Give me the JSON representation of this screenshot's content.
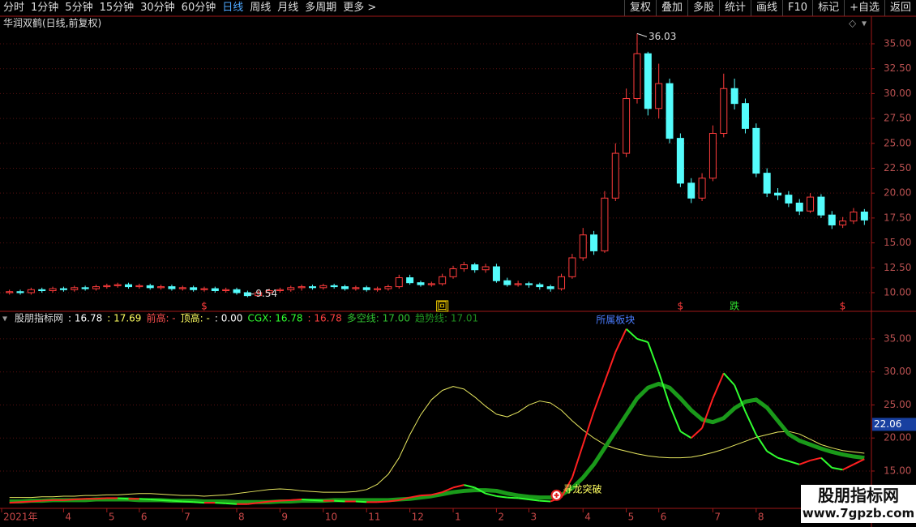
{
  "toolbar": {
    "left": [
      "分时",
      "1分钟",
      "5分钟",
      "15分钟",
      "30分钟",
      "60分钟",
      "日线",
      "周线",
      "月线",
      "多周期",
      "更多 >"
    ],
    "active": 6,
    "right": [
      "复权",
      "叠加",
      "多股",
      "统计",
      "画线",
      "F10",
      "标记",
      "+自选",
      "返回"
    ]
  },
  "chart_data": [
    {
      "type": "candlestick",
      "title": "华润双鹤(日线,前复权)",
      "open": [
        10.0,
        10.1,
        10.0,
        10.3,
        10.2,
        10.4,
        10.3,
        10.5,
        10.4,
        10.6,
        10.7,
        10.8,
        10.6,
        10.7,
        10.5,
        10.6,
        10.4,
        10.5,
        10.3,
        10.4,
        10.2,
        10.3,
        10.0,
        9.7,
        10.0,
        10.2,
        10.3,
        10.5,
        10.6,
        10.5,
        10.7,
        10.6,
        10.4,
        10.5,
        10.3,
        10.4,
        10.6,
        11.5,
        11.0,
        10.8,
        10.9,
        11.6,
        12.4,
        12.8,
        12.3,
        12.6,
        11.2,
        10.8,
        10.9,
        10.8,
        10.6,
        10.4,
        11.6,
        13.5,
        15.8,
        14.2,
        19.5,
        24.0,
        29.5,
        34.0,
        28.5,
        31.0,
        25.5,
        21.0,
        19.5,
        21.5,
        26.0,
        30.5,
        29.0,
        26.5,
        22.0,
        20.0,
        19.8,
        19.0,
        18.2,
        19.6,
        17.8,
        16.8,
        17.2,
        18.1
      ],
      "high": [
        10.3,
        10.3,
        10.5,
        10.5,
        10.6,
        10.6,
        10.7,
        10.7,
        10.8,
        10.9,
        11.0,
        11.0,
        10.9,
        10.9,
        10.8,
        10.8,
        10.7,
        10.7,
        10.6,
        10.6,
        10.5,
        10.5,
        10.2,
        10.2,
        10.4,
        10.5,
        10.7,
        10.8,
        10.8,
        10.9,
        10.9,
        10.8,
        10.7,
        10.7,
        10.6,
        10.8,
        11.8,
        11.8,
        11.2,
        11.1,
        11.9,
        12.7,
        13.1,
        13.0,
        12.9,
        12.9,
        11.5,
        11.2,
        11.1,
        11.0,
        10.8,
        11.9,
        13.9,
        16.5,
        16.2,
        20.2,
        25.0,
        30.5,
        36.03,
        34.2,
        33.0,
        31.5,
        26.0,
        21.5,
        22.0,
        26.8,
        32.0,
        31.5,
        29.5,
        27.0,
        22.5,
        20.5,
        20.2,
        19.4,
        20.0,
        19.9,
        18.2,
        17.6,
        18.5,
        18.4
      ],
      "low": [
        9.8,
        9.8,
        9.8,
        10.0,
        10.0,
        10.1,
        10.1,
        10.2,
        10.2,
        10.4,
        10.5,
        10.4,
        10.4,
        10.3,
        10.3,
        10.2,
        10.2,
        10.1,
        10.1,
        10.0,
        10.0,
        9.8,
        9.54,
        9.6,
        9.8,
        10.0,
        10.1,
        10.2,
        10.3,
        10.3,
        10.4,
        10.2,
        10.2,
        10.1,
        10.1,
        10.2,
        10.4,
        10.8,
        10.6,
        10.6,
        10.7,
        11.4,
        12.1,
        12.0,
        12.0,
        11.0,
        10.6,
        10.6,
        10.5,
        10.3,
        10.1,
        10.2,
        11.4,
        13.2,
        13.8,
        14.0,
        19.2,
        23.6,
        29.0,
        27.8,
        27.5,
        25.0,
        20.6,
        19.0,
        19.2,
        21.2,
        25.6,
        28.4,
        26.0,
        21.6,
        19.6,
        19.3,
        18.6,
        17.8,
        18.0,
        17.5,
        16.4,
        16.5,
        16.9,
        16.8
      ],
      "close": [
        10.1,
        10.0,
        10.3,
        10.2,
        10.4,
        10.3,
        10.5,
        10.4,
        10.6,
        10.7,
        10.8,
        10.6,
        10.7,
        10.5,
        10.6,
        10.4,
        10.5,
        10.3,
        10.4,
        10.2,
        10.3,
        10.0,
        9.7,
        10.0,
        10.2,
        10.3,
        10.5,
        10.6,
        10.5,
        10.7,
        10.6,
        10.4,
        10.5,
        10.3,
        10.4,
        10.6,
        11.5,
        11.0,
        10.8,
        10.9,
        11.6,
        12.4,
        12.8,
        12.3,
        12.6,
        11.2,
        10.8,
        10.9,
        10.8,
        10.6,
        10.4,
        11.6,
        13.5,
        15.8,
        14.2,
        19.5,
        24.0,
        29.5,
        34.0,
        28.5,
        31.0,
        25.5,
        21.0,
        19.5,
        21.5,
        26.0,
        30.5,
        29.0,
        26.5,
        22.0,
        20.0,
        19.8,
        19.0,
        18.2,
        19.6,
        17.8,
        16.8,
        17.2,
        18.1,
        17.3
      ],
      "colors": {
        "up": "#ff3c3c",
        "down": "#54fcfc"
      },
      "ylim": [
        8.45,
        36.14
      ],
      "yticks": [
        {
          "value": 10,
          "label": "10.00"
        },
        {
          "value": 12.5,
          "label": "12.50"
        },
        {
          "value": 15,
          "label": "15.00"
        },
        {
          "value": 17.5,
          "label": "17.50"
        },
        {
          "value": 20,
          "label": "20.00"
        },
        {
          "value": 22.5,
          "label": "22.50"
        },
        {
          "value": 25,
          "label": "25.00"
        },
        {
          "value": 27.5,
          "label": "27.50"
        },
        {
          "value": 30,
          "label": "30.00"
        },
        {
          "value": 32.5,
          "label": "32.50"
        },
        {
          "value": 35,
          "label": "35.00"
        }
      ],
      "grid": true,
      "annotations": [
        {
          "index": 58,
          "value": 36.03
        },
        {
          "index": 22,
          "value": 9.54
        }
      ],
      "signals": [
        {
          "index": 18,
          "text": "$",
          "color": "#ff3c3c"
        },
        {
          "index": 40,
          "text": "回",
          "color": "#ffd700",
          "boxed": true
        },
        {
          "index": 62,
          "text": "$",
          "color": "#ff3c3c"
        },
        {
          "index": 67,
          "text": "跌",
          "color": "#30e030"
        },
        {
          "index": 77,
          "text": "$",
          "color": "#ff3c3c"
        }
      ]
    },
    {
      "type": "line",
      "header": [
        {
          "text": "股朋指标网",
          "color": "#dddddd"
        },
        {
          "text": ": 16.78",
          "color": "#ffffff"
        },
        {
          "text": ": 17.69",
          "color": "#ffff60"
        },
        {
          "text": "前高: -",
          "color": "#ff5050"
        },
        {
          "text": "顶高: -",
          "color": "#ffff60"
        },
        {
          "text": ": 0.00",
          "color": "#ffffff"
        },
        {
          "text": "CGX: 16.78",
          "color": "#30ff30"
        },
        {
          "text": ": 16.78",
          "color": "#ff4040"
        },
        {
          "text": "多空线: 17.00",
          "color": "#30c030"
        },
        {
          "text": "趋势线: 17.01",
          "color": "#209020"
        }
      ],
      "series": [
        {
          "color": "#e8e860",
          "width": 1,
          "values": [
            11.0,
            11.0,
            11.0,
            11.1,
            11.1,
            11.2,
            11.2,
            11.3,
            11.3,
            11.4,
            11.4,
            11.5,
            11.6,
            11.6,
            11.5,
            11.4,
            11.3,
            11.3,
            11.2,
            11.3,
            11.4,
            11.6,
            11.8,
            12.0,
            12.2,
            12.3,
            12.2,
            12.0,
            11.9,
            11.8,
            11.8,
            11.8,
            11.9,
            12.2,
            13.0,
            14.5,
            17.0,
            20.5,
            23.5,
            25.8,
            27.2,
            27.8,
            27.4,
            26.2,
            24.8,
            23.6,
            23.2,
            23.9,
            25.0,
            25.6,
            25.3,
            24.2,
            22.6,
            21.2,
            20.0,
            19.0,
            18.4,
            18.0,
            17.6,
            17.3,
            17.1,
            17.0,
            17.0,
            17.1,
            17.4,
            17.8,
            18.3,
            18.9,
            19.5,
            20.1,
            20.5,
            20.9,
            21.0,
            20.6,
            19.8,
            19.0,
            18.5,
            18.1,
            17.9,
            17.7
          ]
        },
        {
          "color": "#1a9a1a",
          "width": 5,
          "values": [
            10.4,
            10.4,
            10.5,
            10.5,
            10.6,
            10.6,
            10.6,
            10.6,
            10.7,
            10.7,
            10.7,
            10.7,
            10.6,
            10.6,
            10.6,
            10.5,
            10.5,
            10.5,
            10.4,
            10.4,
            10.4,
            10.3,
            10.3,
            10.3,
            10.3,
            10.4,
            10.4,
            10.5,
            10.5,
            10.5,
            10.6,
            10.6,
            10.6,
            10.6,
            10.6,
            10.6,
            10.7,
            10.8,
            11.0,
            11.2,
            11.5,
            11.8,
            12.0,
            12.1,
            12.1,
            12.0,
            11.6,
            11.3,
            11.1,
            11.0,
            11.0,
            11.4,
            12.4,
            14.0,
            16.0,
            18.5,
            21.0,
            23.5,
            26.0,
            27.6,
            28.2,
            27.6,
            26.0,
            24.2,
            22.8,
            22.4,
            23.0,
            24.5,
            25.5,
            25.8,
            24.6,
            22.6,
            20.6,
            19.6,
            19.0,
            18.4,
            17.9,
            17.5,
            17.2,
            17.0
          ]
        },
        {
          "up_color": "#ff2020",
          "down_color": "#30ff30",
          "width": 2,
          "values": [
            10.2,
            10.3,
            10.4,
            10.5,
            10.6,
            10.6,
            10.7,
            10.8,
            10.8,
            10.9,
            10.9,
            10.8,
            10.8,
            10.7,
            10.6,
            10.5,
            10.4,
            10.3,
            10.2,
            10.2,
            10.1,
            10.0,
            10.0,
            10.2,
            10.4,
            10.5,
            10.6,
            10.7,
            10.6,
            10.5,
            10.5,
            10.4,
            10.4,
            10.3,
            10.3,
            10.4,
            10.6,
            11.0,
            11.3,
            11.4,
            11.8,
            12.5,
            12.9,
            12.5,
            11.6,
            11.2,
            11.0,
            10.9,
            10.7,
            10.5,
            10.4,
            11.0,
            14.0,
            19.0,
            24.0,
            28.5,
            33.0,
            36.5,
            35.0,
            34.5,
            30.0,
            25.0,
            21.0,
            20.0,
            21.5,
            26.0,
            29.8,
            28.0,
            24.0,
            20.5,
            18.0,
            17.0,
            16.5,
            16.0,
            16.6,
            17.0,
            15.5,
            15.2,
            16.0,
            16.8
          ]
        }
      ],
      "ylim": [
        9.6,
        37.2
      ],
      "yticks": [
        {
          "value": 15,
          "label": "15.00"
        },
        {
          "value": 20,
          "label": "20.00"
        },
        {
          "value": 25,
          "label": "25.00"
        },
        {
          "value": 30,
          "label": "30.00"
        },
        {
          "value": 35,
          "label": "35.00"
        }
      ],
      "current_value": 22.06,
      "grid": true,
      "annotations": [
        {
          "index": 56,
          "value": 37.3,
          "text": "所属板块",
          "color": "#4a7cff"
        },
        {
          "index": 51,
          "value": 11.7,
          "text": "寻龙突破",
          "color": "#ffff60",
          "icon": true
        }
      ],
      "xticks": [
        {
          "value": 0,
          "label": "2021年"
        },
        {
          "value": 5,
          "label": "4"
        },
        {
          "value": 9,
          "label": "5"
        },
        {
          "value": 12,
          "label": "6"
        },
        {
          "value": 16,
          "label": "7"
        },
        {
          "value": 21,
          "label": "8"
        },
        {
          "value": 25,
          "label": "9"
        },
        {
          "value": 29,
          "label": "10"
        },
        {
          "value": 33,
          "label": "11"
        },
        {
          "value": 37,
          "label": "12"
        },
        {
          "value": 41,
          "label": "1"
        },
        {
          "value": 45,
          "label": "2"
        },
        {
          "value": 48,
          "label": "3"
        },
        {
          "value": 53,
          "label": "4"
        },
        {
          "value": 57,
          "label": "5"
        },
        {
          "value": 60,
          "label": "6"
        },
        {
          "value": 65,
          "label": "7"
        },
        {
          "value": 69,
          "label": "8"
        }
      ]
    }
  ],
  "watermark": {
    "title": "股朋指标网",
    "url": "www.7gpzb.com"
  }
}
